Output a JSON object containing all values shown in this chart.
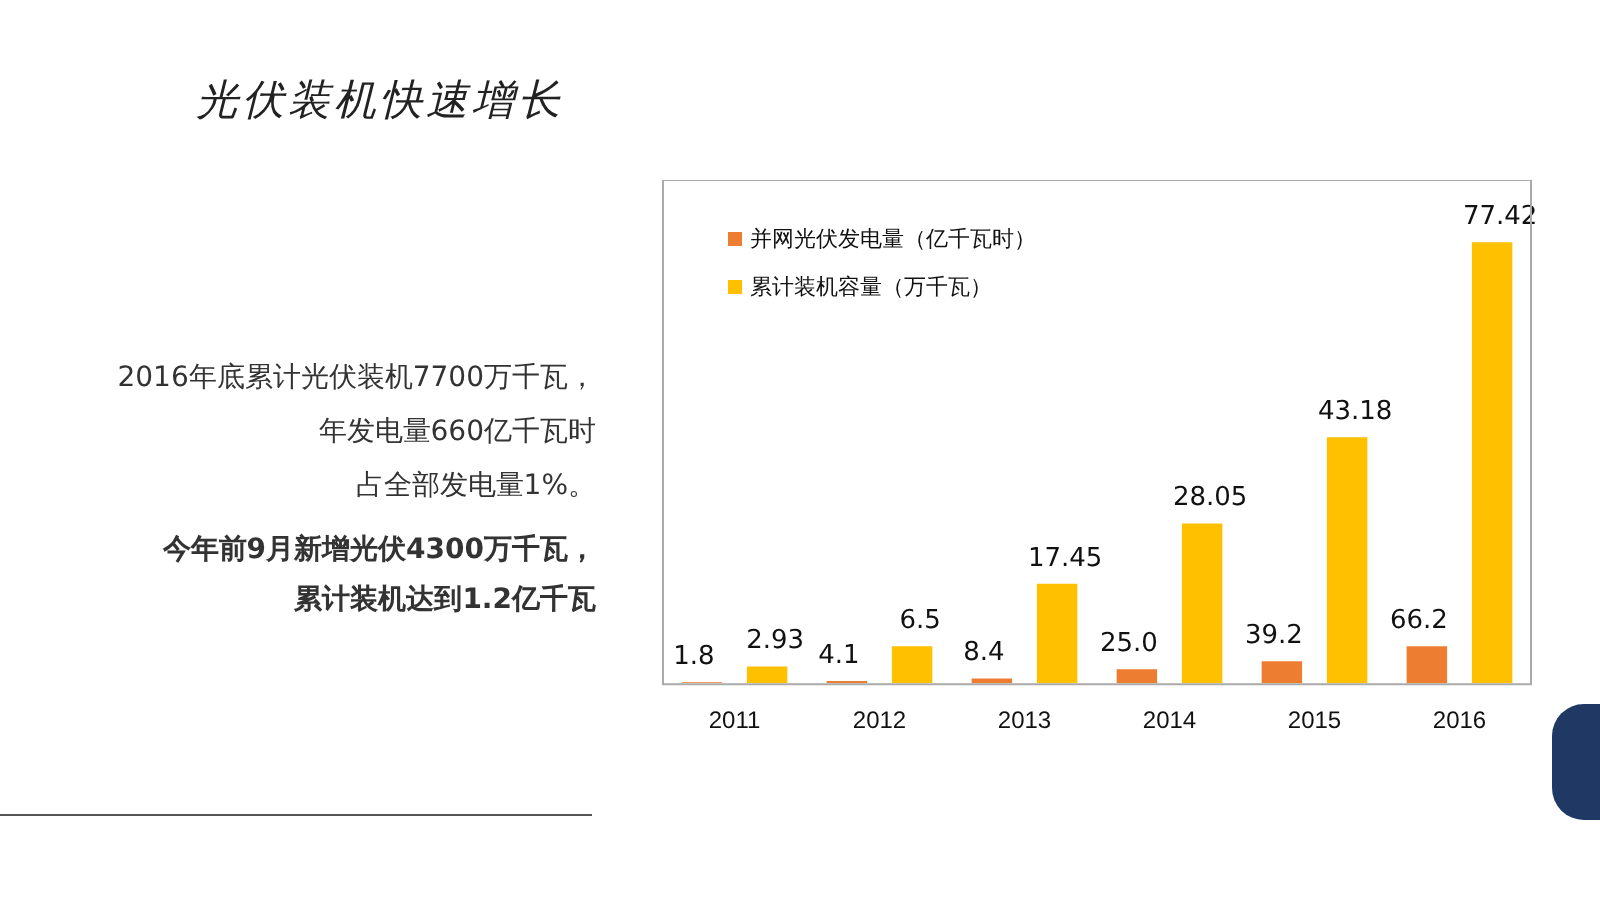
{
  "chart_data": {
    "type": "bar",
    "title": "光伏装机快速增长",
    "categories": [
      "2011",
      "2012",
      "2013",
      "2014",
      "2015",
      "2016"
    ],
    "series": [
      {
        "name": "并网光伏发电量（亿千瓦时）",
        "color": "#ed7d31",
        "axis": "y2",
        "values": [
          1.8,
          4.1,
          8.4,
          25.0,
          39.2,
          66.2
        ],
        "value_labels": [
          "1.8",
          "4.1",
          "8.4",
          "25.0",
          "39.2",
          "66.2"
        ]
      },
      {
        "name": "累计装机容量（万千瓦）",
        "color": "#ffc000",
        "values": [
          2.93,
          6.5,
          17.45,
          28.05,
          43.18,
          77.42
        ],
        "value_labels": [
          "2.93",
          "6.5",
          "17.45",
          "28.05",
          "43.18",
          "77.42"
        ]
      }
    ],
    "ylim": [
      0,
      88
    ],
    "y2lim": [
      0,
      900
    ],
    "tick_labels": "x",
    "grid": false,
    "legend": "top left",
    "annotations": [
      "2016年底累计光伏装机7700万千瓦，",
      "年发电量660亿千瓦时",
      "占全部发电量1%。",
      "今年前9月新增光伏4300万千瓦，",
      "累计装机达到1.2亿千瓦"
    ]
  }
}
